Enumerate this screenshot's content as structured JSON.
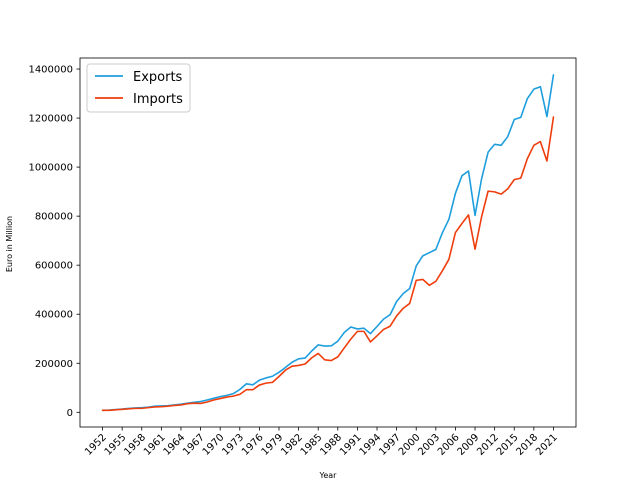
{
  "chart_data": {
    "type": "line",
    "title": "",
    "xlabel": "Year",
    "ylabel": "Euro in Million",
    "x": [
      1952,
      1953,
      1954,
      1955,
      1956,
      1957,
      1958,
      1959,
      1960,
      1961,
      1962,
      1963,
      1964,
      1965,
      1966,
      1967,
      1968,
      1969,
      1970,
      1971,
      1972,
      1973,
      1974,
      1975,
      1976,
      1977,
      1978,
      1979,
      1980,
      1981,
      1982,
      1983,
      1984,
      1985,
      1986,
      1987,
      1988,
      1989,
      1990,
      1991,
      1992,
      1993,
      1994,
      1995,
      1996,
      1997,
      1998,
      1999,
      2000,
      2001,
      2002,
      2003,
      2004,
      2005,
      2006,
      2007,
      2008,
      2009,
      2010,
      2011,
      2012,
      2013,
      2014,
      2015,
      2016,
      2017,
      2018,
      2019,
      2020,
      2021
    ],
    "xticks": [
      1952,
      1955,
      1958,
      1961,
      1964,
      1967,
      1970,
      1973,
      1976,
      1979,
      1982,
      1985,
      1988,
      1991,
      1994,
      1997,
      2000,
      2003,
      2006,
      2009,
      2012,
      2015,
      2018,
      2021
    ],
    "yticks": [
      0,
      200000,
      400000,
      600000,
      800000,
      1000000,
      1200000,
      1400000
    ],
    "xlim": [
      1948.55,
      2024.45
    ],
    "ylim": [
      -60000,
      1445000
    ],
    "grid": false,
    "legend_position": "upper-left",
    "series": [
      {
        "name": "Exports",
        "color": "#1f9ede",
        "values": [
          8000,
          9000,
          11000,
          13000,
          16000,
          18000,
          19000,
          21000,
          25000,
          26000,
          27000,
          30000,
          33000,
          37000,
          41000,
          44000,
          50000,
          57000,
          64000,
          69000,
          76000,
          93000,
          116000,
          112000,
          131000,
          140000,
          147000,
          163000,
          183000,
          204000,
          218000,
          221000,
          250000,
          275000,
          270000,
          271000,
          290000,
          326000,
          348000,
          340000,
          343000,
          321000,
          350000,
          380000,
          398000,
          452000,
          484000,
          505000,
          597000,
          638000,
          651000,
          664000,
          732000,
          787000,
          893000,
          965000,
          984000,
          803000,
          952000,
          1061000,
          1093000,
          1089000,
          1124000,
          1194000,
          1203000,
          1279000,
          1318000,
          1328000,
          1206000,
          1376000
        ]
      },
      {
        "name": "Imports",
        "color": "#ef3e0d",
        "values": [
          8000,
          8000,
          10000,
          12000,
          14000,
          16000,
          16000,
          19000,
          22000,
          23000,
          25000,
          28000,
          30000,
          35000,
          37000,
          36000,
          42000,
          50000,
          56000,
          62000,
          66000,
          73000,
          92000,
          92000,
          111000,
          119000,
          122000,
          146000,
          172000,
          188000,
          191000,
          197000,
          222000,
          240000,
          214000,
          211000,
          226000,
          263000,
          299000,
          330000,
          330000,
          287000,
          312000,
          338000,
          351000,
          393000,
          424000,
          444000,
          538000,
          542000,
          518000,
          534000,
          577000,
          624000,
          733000,
          770000,
          805000,
          665000,
          797000,
          902000,
          899000,
          890000,
          911000,
          949000,
          955000,
          1034000,
          1089000,
          1104000,
          1025000,
          1204000
        ]
      }
    ]
  }
}
